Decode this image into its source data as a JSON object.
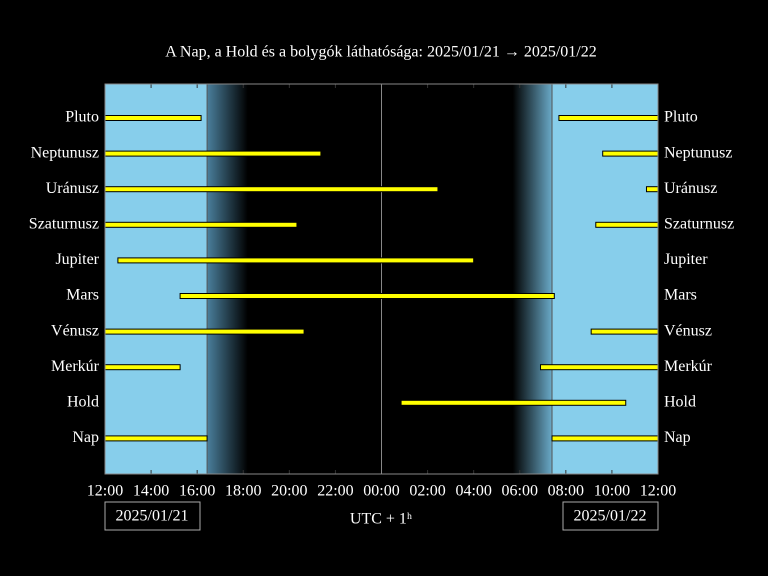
{
  "chart_data": {
    "type": "timeline",
    "title": "A Nap, a Hold és a bolygók láthatósága: 2025/01/21 → 2025/01/22",
    "xlabel": "UTC + 1ʰ",
    "start_date": "2025/01/21",
    "end_date": "2025/01/22",
    "categories": [
      "Pluto",
      "Neptunusz",
      "Uránusz",
      "Szaturnusz",
      "Jupiter",
      "Mars",
      "Vénusz",
      "Merkúr",
      "Hold",
      "Nap"
    ],
    "intervals": [
      [
        [
          0,
          4.17
        ],
        [
          19.7,
          24
        ]
      ],
      [
        [
          0,
          9.37
        ],
        [
          21.6,
          24
        ]
      ],
      [
        [
          0,
          14.45
        ],
        [
          23.5,
          24
        ]
      ],
      [
        [
          0,
          8.33
        ],
        [
          21.3,
          24
        ]
      ],
      [
        [
          0.56,
          16.0
        ]
      ],
      [
        [
          3.26,
          19.5
        ]
      ],
      [
        [
          0,
          8.64
        ],
        [
          21.1,
          24
        ]
      ],
      [
        [
          0,
          3.26
        ],
        [
          18.9,
          24
        ]
      ],
      [
        [
          12.85,
          22.6
        ]
      ],
      [
        [
          0,
          4.43
        ],
        [
          19.4,
          24
        ]
      ]
    ],
    "color": "#ffff00",
    "daylight": {
      "sunset": 4.43,
      "dusk_end": 6.2,
      "dawn_start": 17.7,
      "sunrise": 19.4,
      "day_color": "#87ceeb"
    },
    "xlim": [
      0,
      24
    ],
    "xticks": [
      {
        "value": 0,
        "label": "12:00"
      },
      {
        "value": 2,
        "label": "14:00"
      },
      {
        "value": 4,
        "label": "16:00"
      },
      {
        "value": 6,
        "label": "18:00"
      },
      {
        "value": 8,
        "label": "20:00"
      },
      {
        "value": 10,
        "label": "22:00"
      },
      {
        "value": 12,
        "label": "00:00"
      },
      {
        "value": 14,
        "label": "02:00"
      },
      {
        "value": 16,
        "label": "04:00"
      },
      {
        "value": 18,
        "label": "06:00"
      },
      {
        "value": 20,
        "label": "08:00"
      },
      {
        "value": 22,
        "label": "10:00"
      },
      {
        "value": 24,
        "label": "12:00"
      }
    ]
  }
}
